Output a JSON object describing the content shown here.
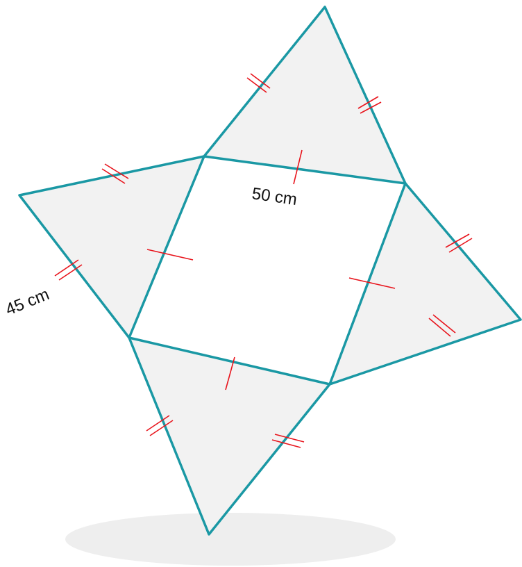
{
  "diagram": {
    "labels": {
      "base_side": "50 cm",
      "triangle_side": "45 cm"
    },
    "colors": {
      "edge": "#1a98a4",
      "tick_marks": "#e8141c",
      "face_fill": "#f2f2f2",
      "shadow": "#eeeeee",
      "label": "#111111"
    }
  }
}
